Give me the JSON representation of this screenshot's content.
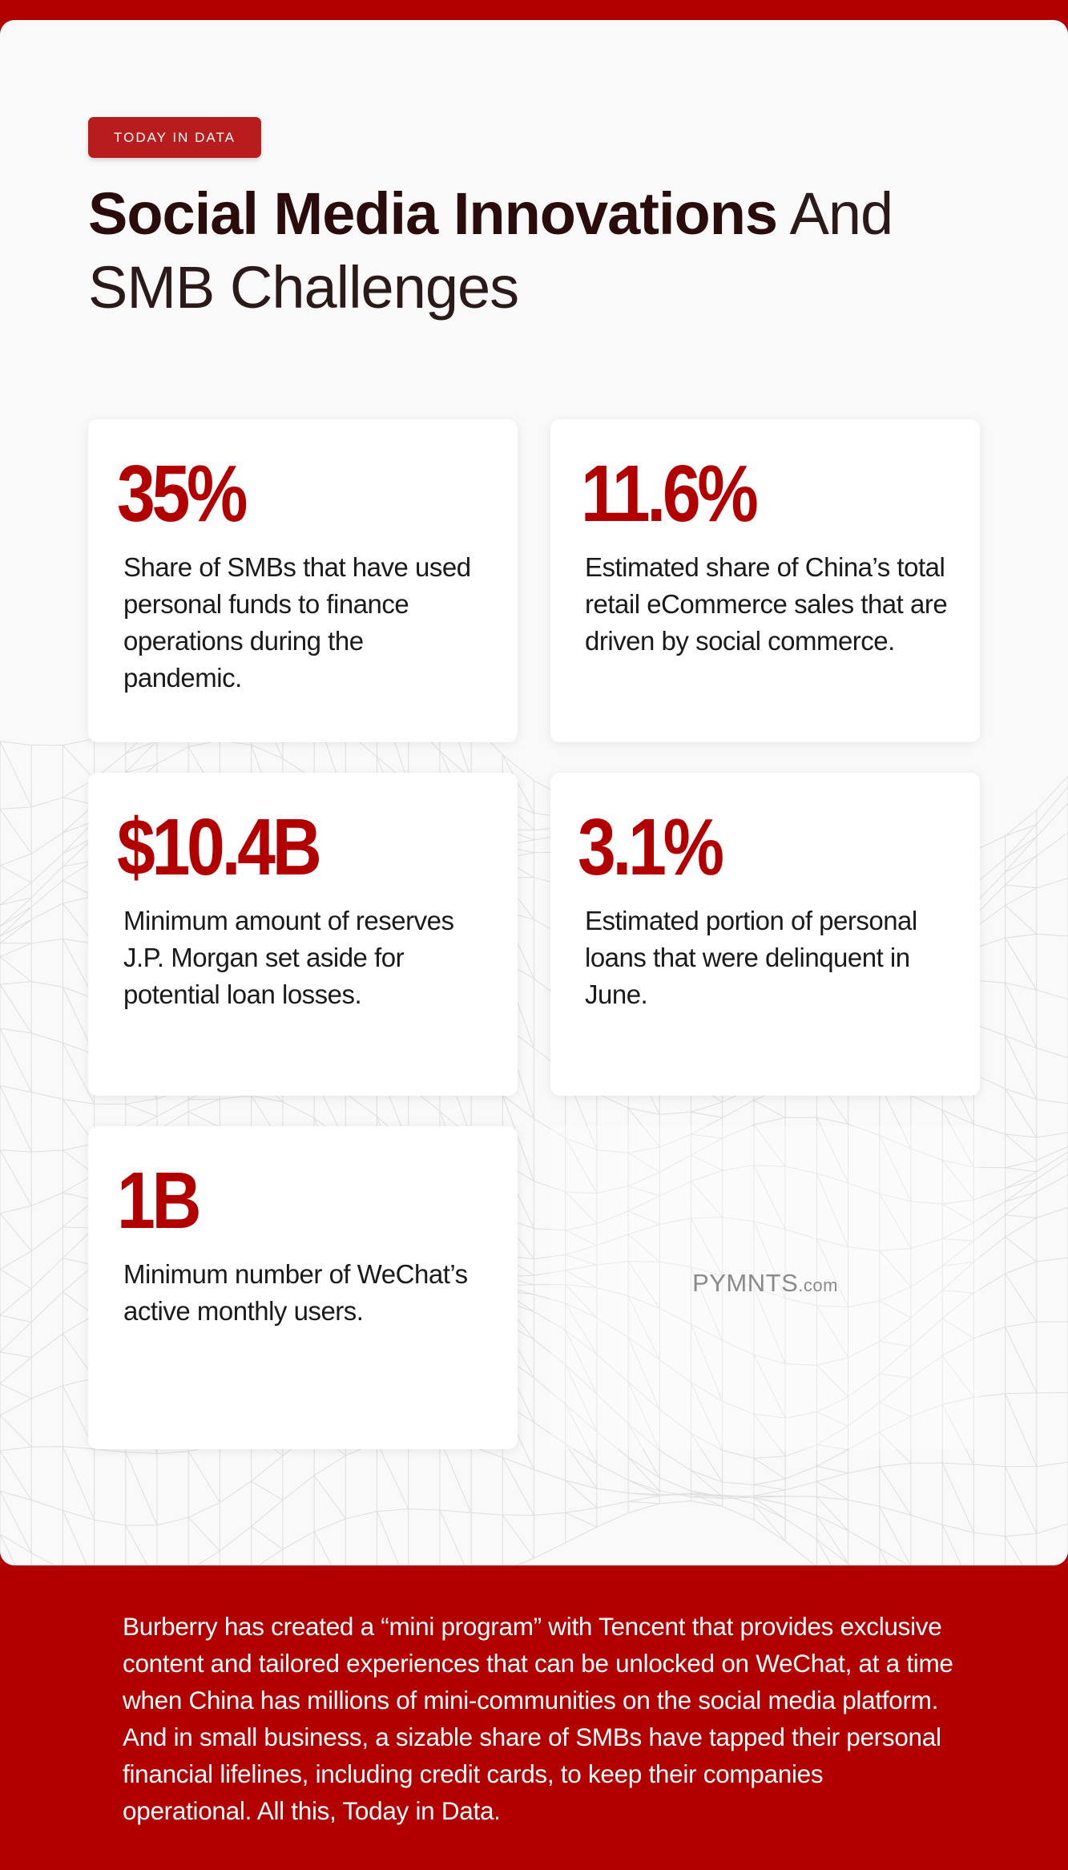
{
  "header": {
    "tag": "TODAY IN DATA",
    "title_bold": "Social Media Innovations",
    "title_light_1": " And",
    "title_light_2": "SMB Challenges"
  },
  "stats": [
    {
      "value": "35%",
      "description": "Share of SMBs that have used personal funds to finance operations during the pandemic."
    },
    {
      "value": "11.6%",
      "description": "Estimated share of China’s total retail eCommerce sales that are driven by social commerce."
    },
    {
      "value": "$10.4B",
      "description": "Minimum amount of reserves J.P. Morgan set aside for potential loan losses."
    },
    {
      "value": "3.1%",
      "description": "Estimated portion of personal loans that were delinquent in June."
    },
    {
      "value": "1B",
      "description": "Minimum number of WeChat’s active monthly users."
    }
  ],
  "logo": {
    "name": "PYMNTS",
    "suffix": ".com"
  },
  "footer": {
    "text": "Burberry has created a “mini program” with Tencent that provides exclusive content and tailored experiences that can be unlocked on WeChat, at a time when China has millions of mini-communities on the social media platform. And in small business, a sizable share of SMBs have tapped their personal financial lifelines, including credit cards, to keep their companies operational. All this, Today in Data."
  },
  "colors": {
    "brand_red": "#b20000",
    "tag_red": "#b91c1c",
    "title_dark": "#2a0c0c"
  }
}
